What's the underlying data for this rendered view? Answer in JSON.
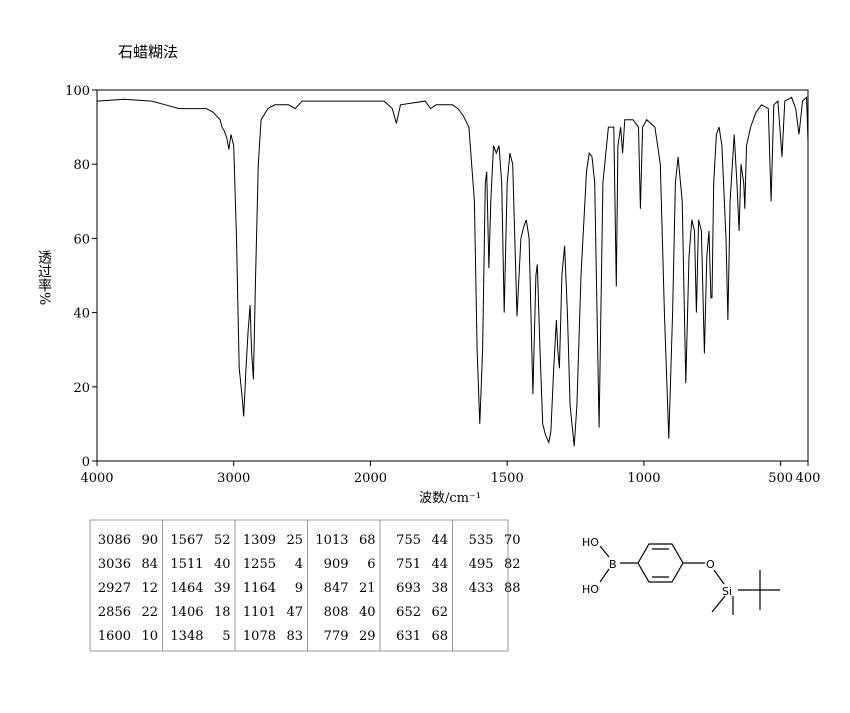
{
  "chart_data": {
    "type": "line",
    "title": "石蜡糊法",
    "y_label": "透过率%",
    "x_label": "波数/cm⁻¹",
    "xlim": [
      4000,
      400
    ],
    "ylim": [
      0,
      100
    ],
    "x_scale_break": 2000,
    "x_scale_ratio": 2,
    "xticks": [
      4000,
      3000,
      2000,
      1500,
      1000,
      500,
      400
    ],
    "yticks": [
      0,
      20,
      40,
      60,
      80,
      100
    ],
    "color": "#000000",
    "x": [
      4000,
      3800,
      3600,
      3500,
      3400,
      3300,
      3200,
      3150,
      3100,
      3086,
      3070,
      3050,
      3036,
      3020,
      3000,
      2980,
      2960,
      2940,
      2927,
      2910,
      2895,
      2880,
      2870,
      2856,
      2840,
      2820,
      2800,
      2750,
      2700,
      2600,
      2550,
      2500,
      2400,
      2300,
      2200,
      2100,
      2000,
      1950,
      1920,
      1905,
      1890,
      1800,
      1780,
      1760,
      1700,
      1680,
      1660,
      1640,
      1620,
      1610,
      1600,
      1590,
      1580,
      1575,
      1567,
      1560,
      1550,
      1540,
      1530,
      1520,
      1511,
      1500,
      1490,
      1480,
      1464,
      1450,
      1440,
      1430,
      1420,
      1406,
      1395,
      1390,
      1380,
      1370,
      1360,
      1348,
      1340,
      1330,
      1320,
      1315,
      1309,
      1300,
      1290,
      1280,
      1270,
      1255,
      1245,
      1230,
      1210,
      1200,
      1190,
      1180,
      1164,
      1150,
      1130,
      1110,
      1101,
      1095,
      1085,
      1078,
      1070,
      1040,
      1020,
      1013,
      1005,
      990,
      960,
      940,
      925,
      909,
      895,
      885,
      875,
      860,
      847,
      835,
      825,
      815,
      808,
      800,
      790,
      779,
      770,
      762,
      755,
      751,
      745,
      735,
      725,
      715,
      700,
      693,
      685,
      670,
      660,
      652,
      645,
      635,
      631,
      625,
      610,
      590,
      570,
      545,
      535,
      525,
      510,
      495,
      485,
      460,
      445,
      433,
      420,
      405,
      400
    ],
    "values": [
      97,
      97.5,
      97,
      96,
      95,
      95,
      95,
      94,
      92,
      90,
      89,
      87,
      84,
      88,
      85,
      60,
      25,
      18,
      12,
      25,
      35,
      42,
      30,
      22,
      50,
      80,
      92,
      95,
      96,
      96,
      95,
      97,
      97,
      97,
      97,
      97,
      97,
      97,
      95,
      91,
      96,
      97,
      95,
      96,
      96,
      95,
      93,
      90,
      70,
      30,
      10,
      30,
      75,
      78,
      52,
      70,
      85,
      83,
      85,
      75,
      40,
      75,
      83,
      80,
      39,
      60,
      63,
      65,
      60,
      18,
      50,
      53,
      30,
      10,
      7,
      5,
      8,
      25,
      38,
      30,
      25,
      50,
      58,
      40,
      15,
      4,
      15,
      50,
      78,
      83,
      82,
      75,
      9,
      75,
      90,
      90,
      47,
      85,
      90,
      83,
      92,
      92,
      90,
      68,
      90,
      92,
      90,
      80,
      40,
      6,
      40,
      75,
      82,
      70,
      21,
      55,
      65,
      62,
      40,
      65,
      62,
      29,
      55,
      62,
      44,
      44,
      75,
      88,
      90,
      85,
      60,
      38,
      70,
      88,
      75,
      62,
      80,
      75,
      68,
      85,
      90,
      94,
      96,
      95,
      70,
      96,
      97,
      82,
      97,
      98,
      95,
      88,
      97,
      98,
      86
    ]
  },
  "peak_table": {
    "columns": [
      [
        [
          3086,
          90
        ],
        [
          3036,
          84
        ],
        [
          2927,
          12
        ],
        [
          2856,
          22
        ],
        [
          1600,
          10
        ]
      ],
      [
        [
          1567,
          52
        ],
        [
          1511,
          40
        ],
        [
          1464,
          39
        ],
        [
          1406,
          18
        ],
        [
          1348,
          5
        ]
      ],
      [
        [
          1309,
          25
        ],
        [
          1255,
          4
        ],
        [
          1164,
          9
        ],
        [
          1101,
          47
        ],
        [
          1078,
          83
        ]
      ],
      [
        [
          1013,
          68
        ],
        [
          909,
          6
        ],
        [
          847,
          21
        ],
        [
          808,
          40
        ],
        [
          779,
          29
        ]
      ],
      [
        [
          755,
          44
        ],
        [
          751,
          44
        ],
        [
          693,
          38
        ],
        [
          652,
          62
        ],
        [
          631,
          68
        ]
      ],
      [
        [
          535,
          70
        ],
        [
          495,
          82
        ],
        [
          433,
          88
        ]
      ]
    ]
  },
  "structure": {
    "labels": [
      "HO",
      "B",
      "HO",
      "O",
      "Si"
    ]
  }
}
